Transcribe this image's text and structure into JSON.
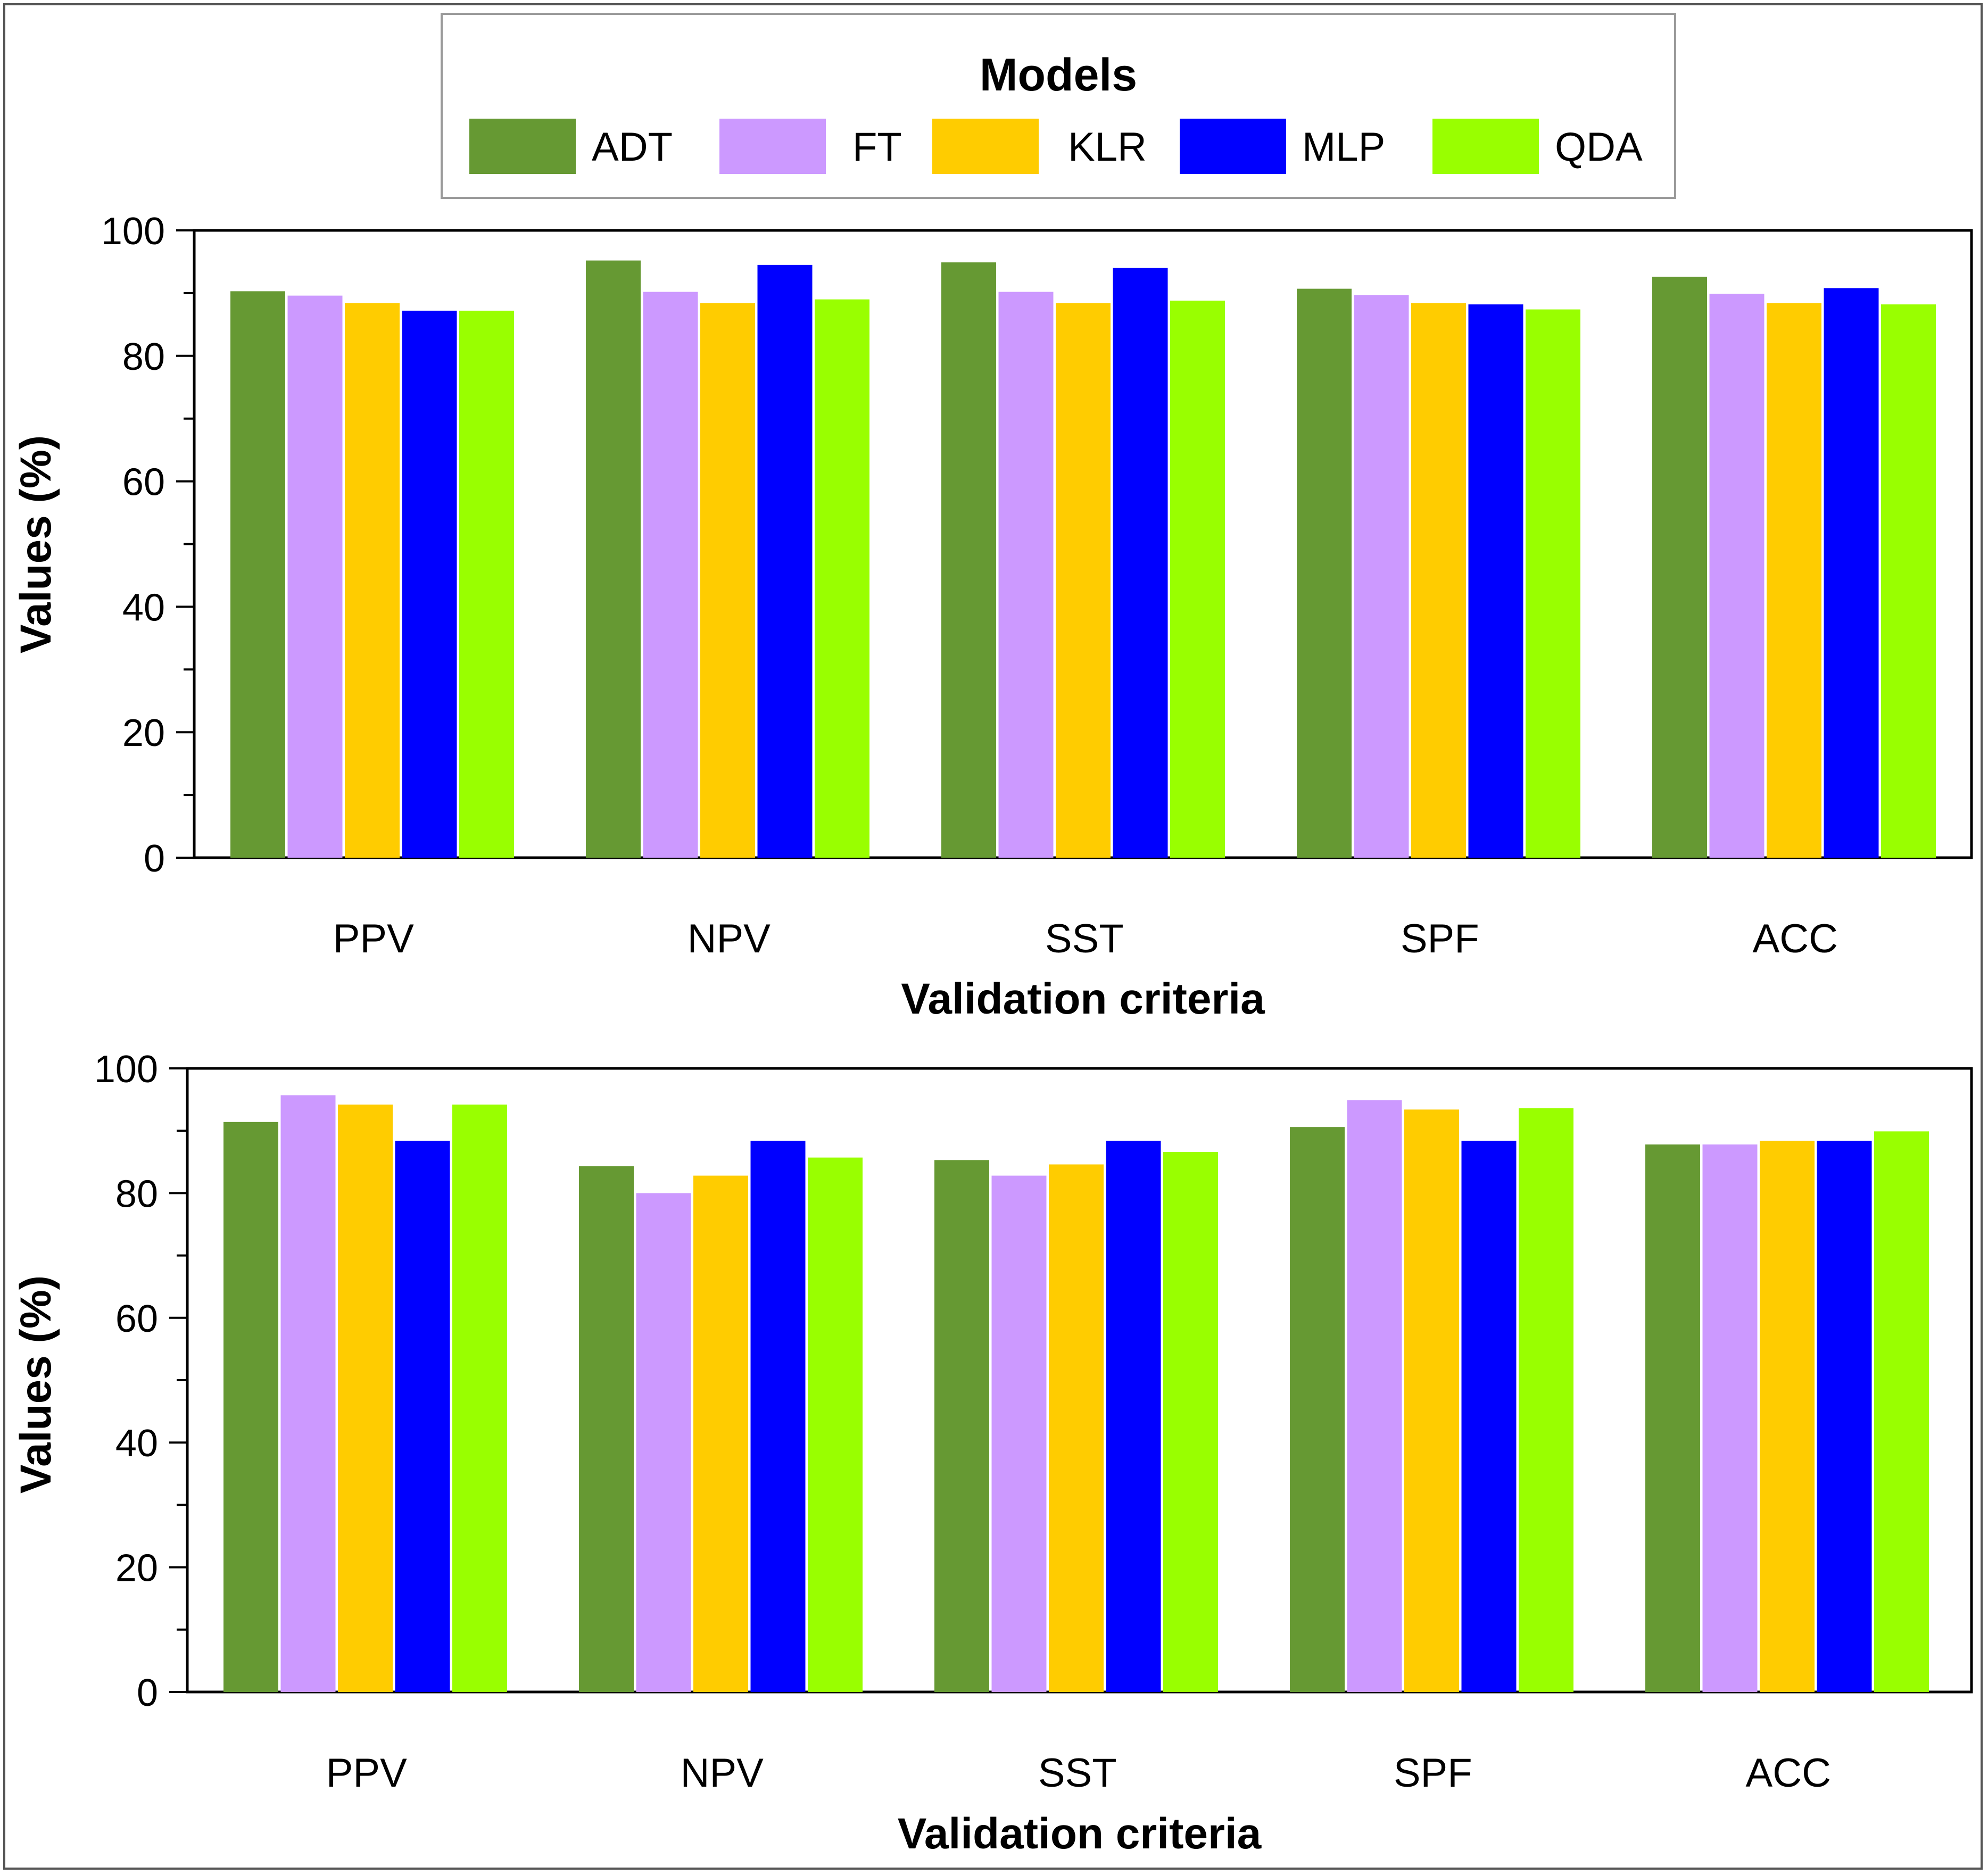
{
  "legend": {
    "title": "Models",
    "items": [
      {
        "label": "ADT",
        "color": "#669933"
      },
      {
        "label": "FT",
        "color": "#cc99ff"
      },
      {
        "label": "KLR",
        "color": "#ffcc00"
      },
      {
        "label": "MLP",
        "color": "#0000ff"
      },
      {
        "label": "QDA",
        "color": "#99ff00"
      }
    ]
  },
  "chart_data": [
    {
      "type": "bar",
      "categories": [
        "PPV",
        "NPV",
        "SST",
        "SPF",
        "ACC"
      ],
      "series": [
        {
          "name": "ADT",
          "values": [
            90.3,
            95.2,
            94.9,
            90.7,
            92.6
          ]
        },
        {
          "name": "FT",
          "values": [
            89.6,
            90.2,
            90.2,
            89.7,
            89.9
          ]
        },
        {
          "name": "KLR",
          "values": [
            88.4,
            88.4,
            88.4,
            88.4,
            88.4
          ]
        },
        {
          "name": "MLP",
          "values": [
            87.2,
            94.5,
            94.0,
            88.2,
            90.8
          ]
        },
        {
          "name": "QDA",
          "values": [
            87.2,
            89.0,
            88.8,
            87.4,
            88.2
          ]
        }
      ],
      "title": "",
      "xlabel": "Validation criteria",
      "ylabel": "Values (%)",
      "ylim": [
        0,
        100
      ],
      "yticks": [
        "0",
        "20",
        "40",
        "60",
        "80",
        "100"
      ]
    },
    {
      "type": "bar",
      "categories": [
        "PPV",
        "NPV",
        "SST",
        "SPF",
        "ACC"
      ],
      "series": [
        {
          "name": "ADT",
          "values": [
            91.4,
            84.3,
            85.3,
            90.6,
            87.8
          ]
        },
        {
          "name": "FT",
          "values": [
            95.7,
            80.0,
            82.8,
            94.9,
            87.8
          ]
        },
        {
          "name": "KLR",
          "values": [
            94.2,
            82.8,
            84.6,
            93.4,
            88.4
          ]
        },
        {
          "name": "MLP",
          "values": [
            88.4,
            88.4,
            88.4,
            88.4,
            88.4
          ]
        },
        {
          "name": "QDA",
          "values": [
            94.2,
            85.7,
            86.6,
            93.6,
            89.9
          ]
        }
      ],
      "title": "",
      "xlabel": "Validation criteria",
      "ylabel": "Values (%)",
      "ylim": [
        0,
        100
      ],
      "yticks": [
        "0",
        "20",
        "40",
        "60",
        "80",
        "100"
      ]
    }
  ]
}
